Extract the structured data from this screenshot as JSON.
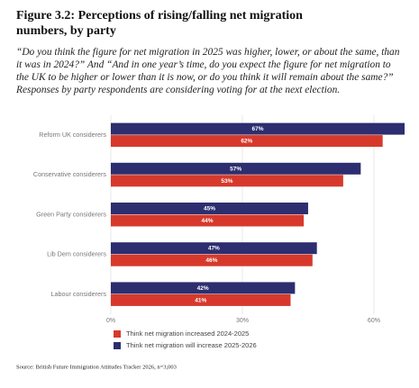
{
  "chart_data": {
    "type": "bar",
    "orientation": "horizontal",
    "title": "Figure 3.2: Perceptions of rising/falling net migration numbers, by party",
    "subtitle": "“Do you think the figure for net migration in 2025 was higher, lower, or about the same, than it was in 2024?” And “And in one year’s time, do you expect the figure for net migration to the UK to be higher or lower than it is now, or do you think it will remain about the same?” Responses by party respondents are considering voting for at the next election.",
    "categories": [
      "Reform UK considerers",
      "Conservative considerers",
      "Green Party considerers",
      "Lib Dem considerers",
      "Labour considerers"
    ],
    "series": [
      {
        "name": "Think net migration increased 2024-2025",
        "color": "#d6392c",
        "values": [
          62,
          53,
          44,
          46,
          41
        ],
        "value_labels": [
          "62%",
          "53%",
          "44%",
          "46%",
          "41%"
        ]
      },
      {
        "name": "Think net migration will increase 2025-2026",
        "color": "#2c2e6f",
        "values": [
          67,
          57,
          45,
          47,
          42
        ],
        "value_labels": [
          "67%",
          "57%",
          "45%",
          "47%",
          "42%"
        ]
      }
    ],
    "xlim": [
      0,
      67
    ],
    "xticks": [
      {
        "value": 0,
        "label": "0%"
      },
      {
        "value": 30,
        "label": "30%"
      },
      {
        "value": 60,
        "label": "60%"
      }
    ],
    "grid": true,
    "source": "Source: British Future Immigration Attitudes Tracker 2026, n=3,003"
  }
}
